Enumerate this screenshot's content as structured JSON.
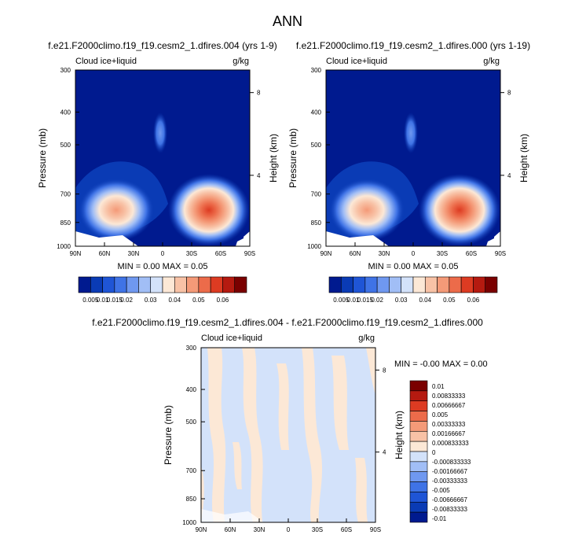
{
  "page_title": "ANN",
  "colors": {
    "abs_levels": [
      "#001a8f",
      "#0a3bb5",
      "#1f55d6",
      "#3f73e6",
      "#6f98f0",
      "#a1bef6",
      "#d3e2fa",
      "#fce8d6",
      "#f8c2a6",
      "#f49a78",
      "#ec6b4a",
      "#dd3b22",
      "#b51a10",
      "#7a0000"
    ],
    "diff_levels": [
      "#001a8f",
      "#0a3bb5",
      "#1f55d6",
      "#3f73e6",
      "#6f98f0",
      "#a1bef6",
      "#d3e2fa",
      "#fce8d6",
      "#f8c2a6",
      "#f49a78",
      "#ec6b4a",
      "#dd3b22",
      "#b51a10",
      "#7a0000"
    ]
  },
  "chart_data": [
    {
      "type": "heatmap",
      "title": "f.e21.F2000climo.f19_f19.cesm2_1.dfires.004 (yrs 1-9)",
      "left_label": "Cloud ice+liquid",
      "right_label": "g/kg",
      "xlabel": "",
      "ylabel": "Pressure (mb)",
      "ylabel_right": "Height (km)",
      "x_ticks": [
        "90N",
        "60N",
        "30N",
        "0",
        "30S",
        "60S",
        "90S"
      ],
      "y_ticks": [
        "300",
        "400",
        "500",
        "700",
        "850",
        "1000"
      ],
      "y_ticks_right": [
        "8",
        "4"
      ],
      "stats": "MIN =  0.00  MAX =  0.05",
      "colorbar_labels": [
        "0.005",
        "0.01",
        "0.015",
        "0.02",
        "0.03",
        "0.04",
        "0.05",
        "0.06"
      ]
    },
    {
      "type": "heatmap",
      "title": "f.e21.F2000climo.f19_f19.cesm2_1.dfires.000 (yrs 1-19)",
      "left_label": "Cloud ice+liquid",
      "right_label": "g/kg",
      "xlabel": "",
      "ylabel": "Pressure (mb)",
      "ylabel_right": "Height (km)",
      "x_ticks": [
        "90N",
        "60N",
        "30N",
        "0",
        "30S",
        "60S",
        "90S"
      ],
      "y_ticks": [
        "300",
        "400",
        "500",
        "700",
        "850",
        "1000"
      ],
      "y_ticks_right": [
        "8",
        "4"
      ],
      "stats": "MIN =  0.00  MAX =  0.05",
      "colorbar_labels": [
        "0.005",
        "0.01",
        "0.015",
        "0.02",
        "0.03",
        "0.04",
        "0.05",
        "0.06"
      ]
    },
    {
      "type": "heatmap",
      "title": "f.e21.F2000climo.f19_f19.cesm2_1.dfires.004 - f.e21.F2000climo.f19_f19.cesm2_1.dfires.000",
      "left_label": "Cloud ice+liquid",
      "right_label": "g/kg",
      "xlabel": "",
      "ylabel": "Pressure (mb)",
      "ylabel_right": "Height (km)",
      "x_ticks": [
        "90N",
        "60N",
        "30N",
        "0",
        "30S",
        "60S",
        "90S"
      ],
      "y_ticks": [
        "300",
        "400",
        "500",
        "700",
        "850",
        "1000"
      ],
      "y_ticks_right": [
        "8",
        "4"
      ],
      "stats": "MIN = -0.00  MAX =  0.00",
      "colorbar_labels": [
        "0.01",
        "0.00833333",
        "0.00666667",
        "0.005",
        "0.00333333",
        "0.00166667",
        "0.000833333",
        "0",
        "-0.000833333",
        "-0.00166667",
        "-0.00333333",
        "-0.005",
        "-0.00666667",
        "-0.00833333",
        "-0.01"
      ]
    }
  ]
}
